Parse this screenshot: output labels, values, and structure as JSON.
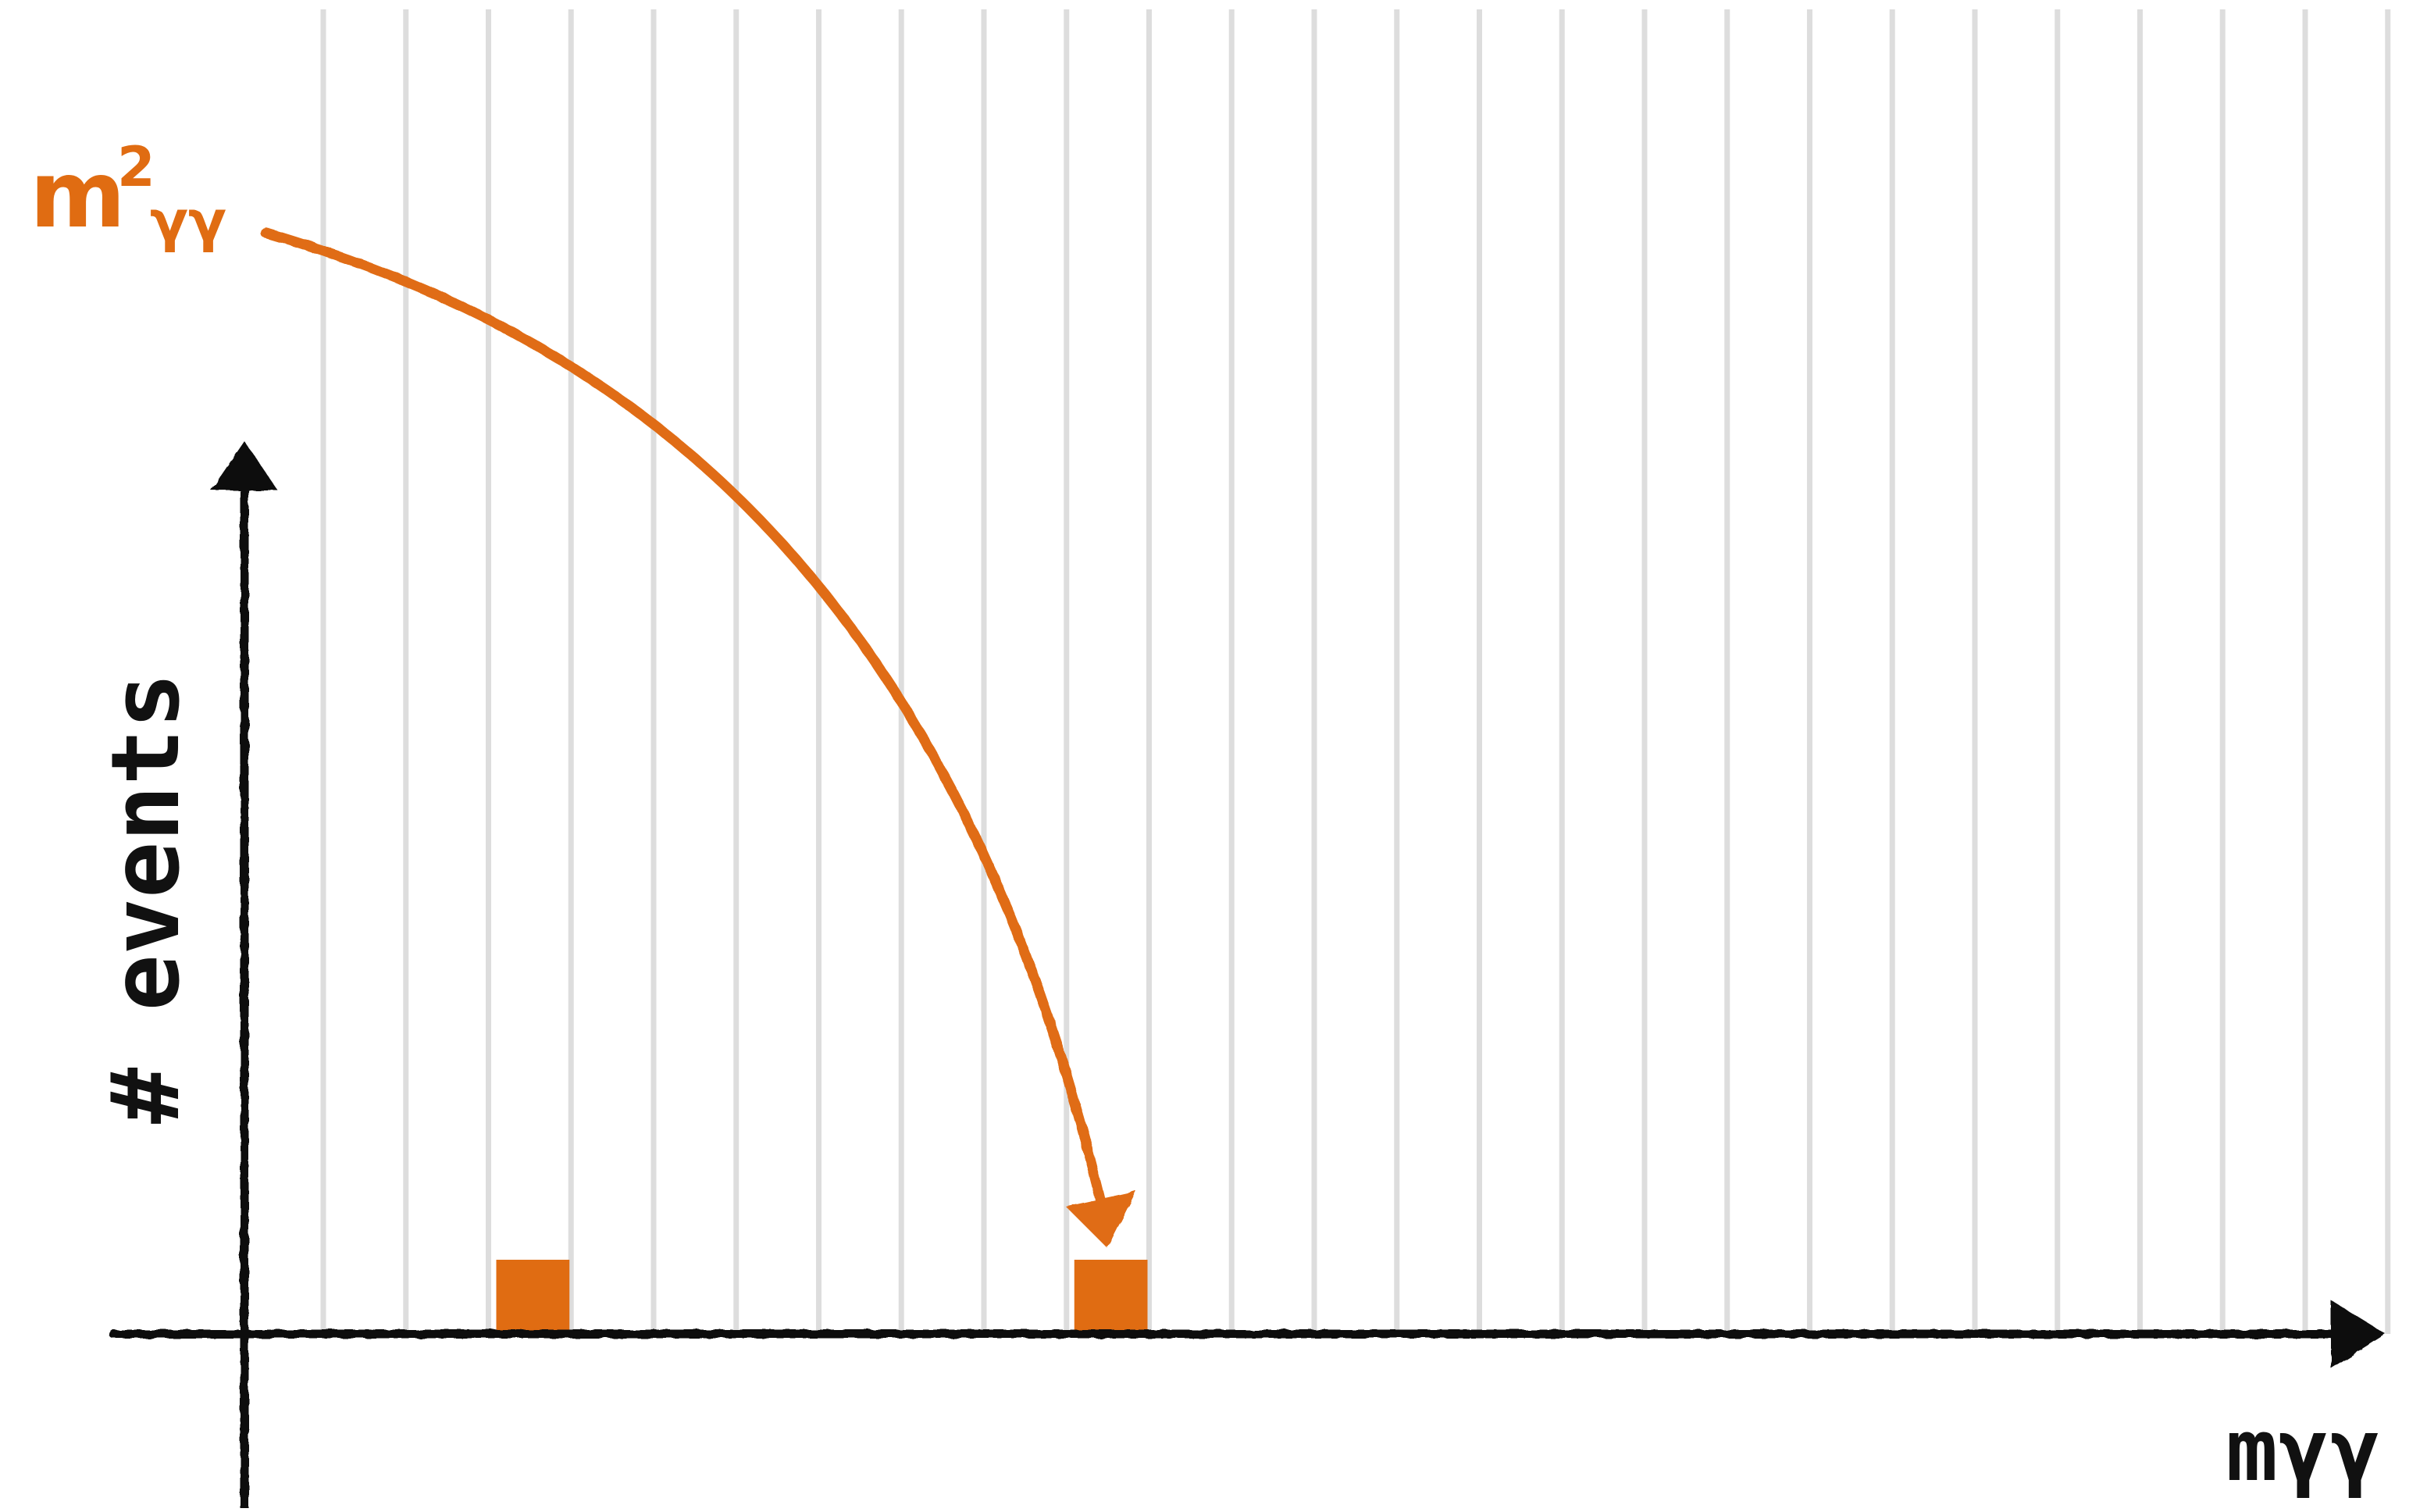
{
  "chart_data": {
    "type": "bar",
    "title": "",
    "xlabel": "mγγ",
    "ylabel": "# events",
    "bin_count": 25,
    "bins_filled": [
      {
        "bin": 3,
        "count": 1
      },
      {
        "bin": 10,
        "count": 1
      }
    ],
    "ylim": [
      0,
      10
    ],
    "grid": true,
    "annotation": {
      "label_main": "m",
      "label_sup": "2",
      "label_sub": "γγ",
      "points_to_bin": 10
    }
  },
  "colors": {
    "accent": "#E06C12",
    "axis": "#111111",
    "grid": "#dddddd"
  }
}
